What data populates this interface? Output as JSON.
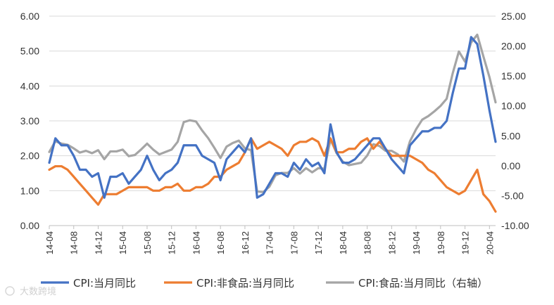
{
  "watermark": "大数跨境",
  "chart_data": {
    "type": "line",
    "x": [
      "14-04",
      "14-05",
      "14-06",
      "14-07",
      "14-08",
      "14-09",
      "14-10",
      "14-11",
      "14-12",
      "15-01",
      "15-02",
      "15-03",
      "15-04",
      "15-05",
      "15-06",
      "15-07",
      "15-08",
      "15-09",
      "15-10",
      "15-11",
      "15-12",
      "16-01",
      "16-02",
      "16-03",
      "16-04",
      "16-05",
      "16-06",
      "16-07",
      "16-08",
      "16-09",
      "16-10",
      "16-11",
      "16-12",
      "17-01",
      "17-02",
      "17-03",
      "17-04",
      "17-05",
      "17-06",
      "17-07",
      "17-08",
      "17-09",
      "17-10",
      "17-11",
      "17-12",
      "18-01",
      "18-02",
      "18-03",
      "18-04",
      "18-05",
      "18-06",
      "18-07",
      "18-08",
      "18-09",
      "18-10",
      "18-11",
      "18-12",
      "19-01",
      "19-02",
      "19-03",
      "19-04",
      "19-05",
      "19-06",
      "19-07",
      "19-08",
      "19-09",
      "19-10",
      "19-11",
      "19-12",
      "20-01",
      "20-02",
      "20-03",
      "20-04",
      "20-05"
    ],
    "xticks": [
      "14-04",
      "14-08",
      "14-12",
      "15-04",
      "15-08",
      "15-12",
      "16-04",
      "16-08",
      "16-12",
      "17-04",
      "17-08",
      "17-12",
      "18-04",
      "18-08",
      "18-12",
      "19-04",
      "19-08",
      "19-12",
      "20-04"
    ],
    "y_left": {
      "ticks": [
        "0.00",
        "1.00",
        "2.00",
        "3.00",
        "4.00",
        "5.00",
        "6.00"
      ],
      "lim": [
        0,
        6
      ]
    },
    "y_right": {
      "ticks": [
        "-10.00",
        "-5.00",
        "0.00",
        "5.00",
        "10.00",
        "15.00",
        "20.00",
        "25.00"
      ],
      "lim": [
        -10,
        25
      ]
    },
    "series": [
      {
        "name": "CPI:当月同比",
        "axis": "left",
        "color": "#4472C4",
        "values": [
          1.8,
          2.5,
          2.3,
          2.3,
          2.0,
          1.6,
          1.6,
          1.4,
          1.5,
          0.8,
          1.4,
          1.4,
          1.5,
          1.2,
          1.4,
          1.6,
          2.0,
          1.6,
          1.3,
          1.5,
          1.6,
          1.8,
          2.3,
          2.3,
          2.3,
          2.0,
          1.9,
          1.8,
          1.3,
          1.9,
          2.1,
          2.3,
          2.1,
          2.5,
          0.8,
          0.9,
          1.2,
          1.5,
          1.5,
          1.4,
          1.8,
          1.6,
          1.9,
          1.7,
          1.8,
          1.5,
          2.9,
          2.1,
          1.8,
          1.8,
          1.9,
          2.1,
          2.3,
          2.5,
          2.5,
          2.2,
          1.9,
          1.7,
          1.5,
          2.3,
          2.5,
          2.7,
          2.7,
          2.8,
          2.8,
          3.0,
          3.8,
          4.5,
          4.5,
          5.4,
          5.2,
          4.3,
          3.3,
          2.4
        ]
      },
      {
        "name": "CPI:非食品:当月同比",
        "axis": "left",
        "color": "#ED7D31",
        "values": [
          1.6,
          1.7,
          1.7,
          1.6,
          1.4,
          1.2,
          1.0,
          0.8,
          0.6,
          0.9,
          0.9,
          0.9,
          1.0,
          1.1,
          1.1,
          1.1,
          1.1,
          1.0,
          1.0,
          1.1,
          1.1,
          1.2,
          1.0,
          1.0,
          1.1,
          1.1,
          1.2,
          1.4,
          1.4,
          1.6,
          1.7,
          1.8,
          2.1,
          2.5,
          2.2,
          2.3,
          2.4,
          2.3,
          2.2,
          2.0,
          2.3,
          2.4,
          2.4,
          2.5,
          2.4,
          2.0,
          2.5,
          2.1,
          2.1,
          2.2,
          2.2,
          2.4,
          2.5,
          2.2,
          2.4,
          2.2,
          2.0,
          2.0,
          2.0,
          2.0,
          1.9,
          1.8,
          1.6,
          1.5,
          1.3,
          1.1,
          1.0,
          0.9,
          1.0,
          1.3,
          1.6,
          0.9,
          0.7,
          0.4
        ]
      },
      {
        "name": "CPI:食品:当月同比（右轴）",
        "axis": "right",
        "color": "#A5A5A5",
        "values": [
          2.3,
          4.1,
          3.7,
          3.5,
          2.9,
          2.2,
          2.5,
          2.1,
          2.6,
          1.1,
          2.4,
          2.4,
          2.7,
          1.6,
          1.8,
          2.7,
          3.7,
          2.7,
          1.9,
          2.3,
          2.7,
          4.0,
          7.3,
          7.6,
          7.4,
          5.9,
          4.6,
          3.0,
          1.3,
          3.2,
          3.8,
          4.2,
          2.9,
          2.6,
          -4.3,
          -4.4,
          -3.5,
          -1.6,
          -1.2,
          -1.2,
          -0.4,
          -1.3,
          -0.4,
          -1.1,
          -0.4,
          -0.5,
          4.4,
          2.1,
          0.7,
          0.1,
          0.3,
          0.5,
          1.7,
          3.6,
          3.3,
          2.5,
          2.5,
          1.9,
          0.7,
          4.1,
          6.1,
          7.7,
          8.3,
          9.1,
          10.0,
          11.2,
          15.5,
          19.1,
          17.4,
          20.6,
          21.9,
          18.3,
          14.8,
          10.6
        ]
      }
    ],
    "legend_placement": "bottom",
    "grid": "horizontal"
  }
}
